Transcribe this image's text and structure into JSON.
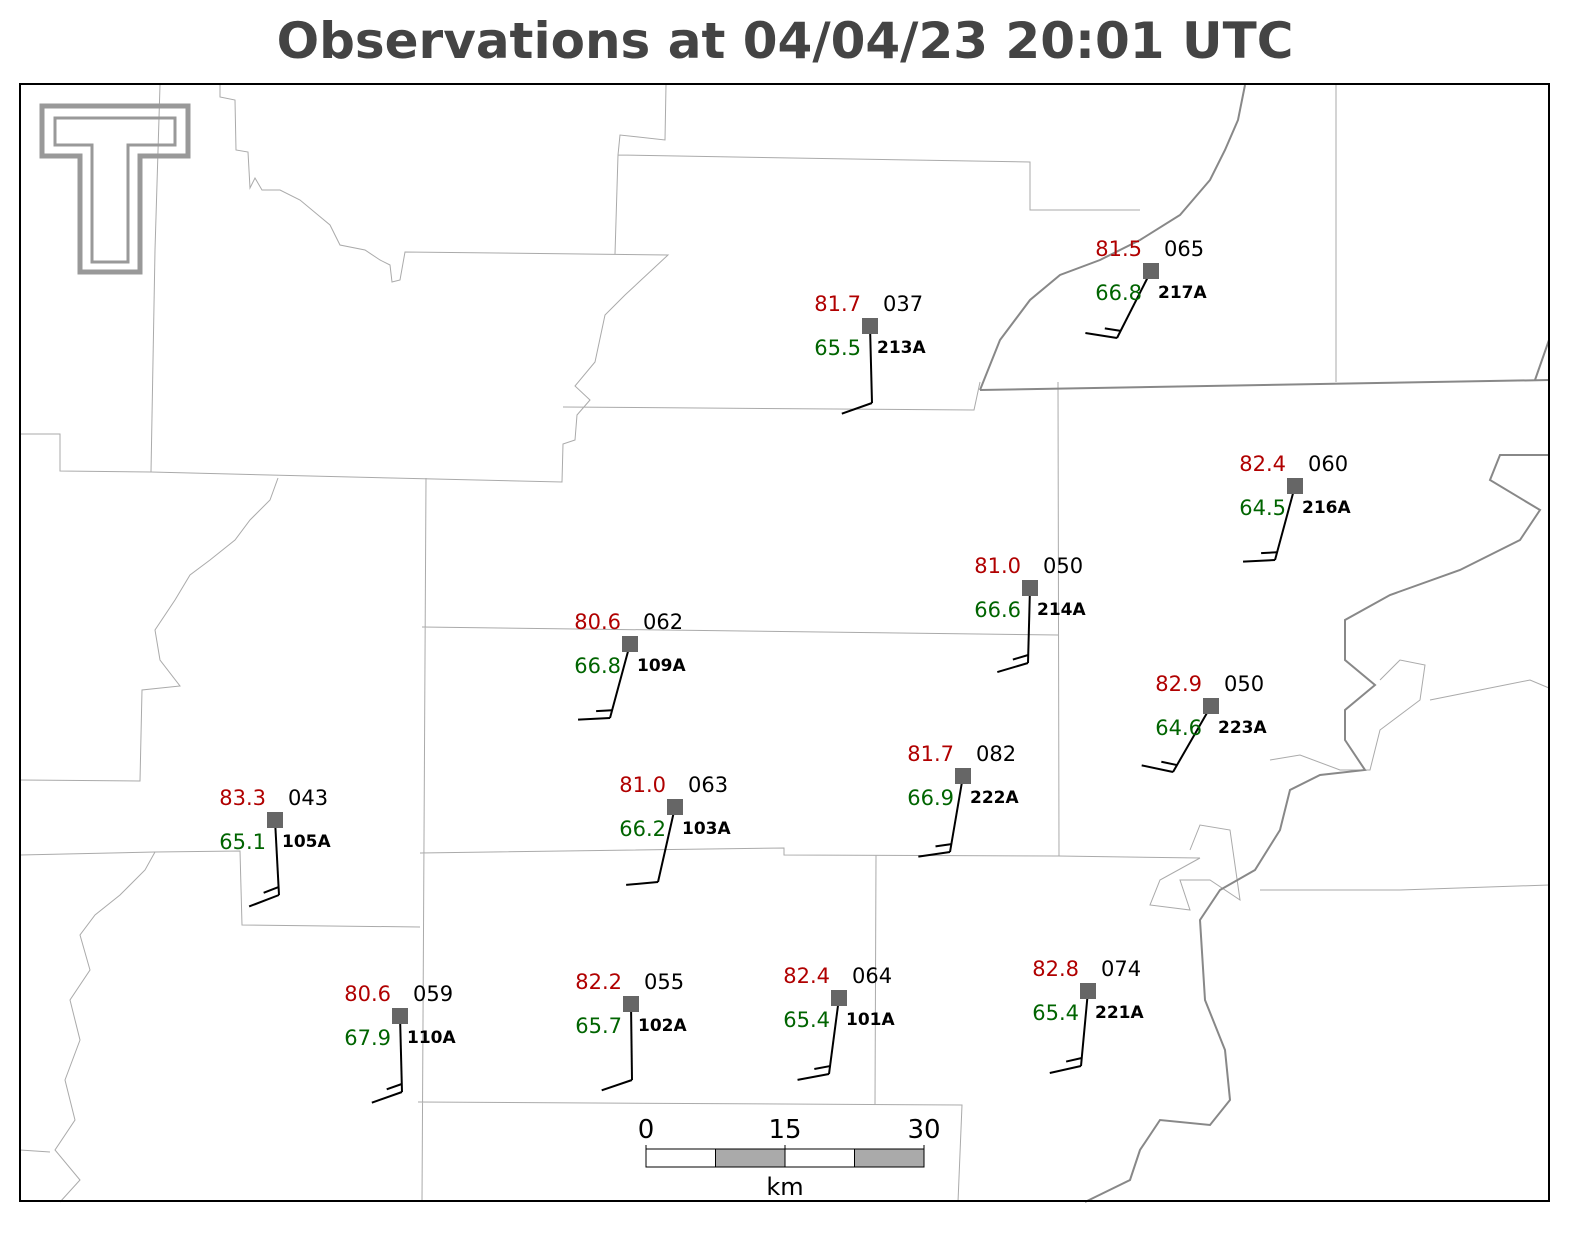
{
  "title": "Observations at 04/04/23 20:01 UTC",
  "stations": [
    {
      "id": "213A",
      "temperature": "81.7",
      "dewpoint": "65.5",
      "pressure": "037"
    },
    {
      "id": "217A",
      "temperature": "81.5",
      "dewpoint": "66.8",
      "pressure": "065"
    },
    {
      "id": "216A",
      "temperature": "82.4",
      "dewpoint": "64.5",
      "pressure": "060"
    },
    {
      "id": "214A",
      "temperature": "81.0",
      "dewpoint": "66.6",
      "pressure": "050"
    },
    {
      "id": "109A",
      "temperature": "80.6",
      "dewpoint": "66.8",
      "pressure": "062"
    },
    {
      "id": "223A",
      "temperature": "82.9",
      "dewpoint": "64.6",
      "pressure": "050"
    },
    {
      "id": "222A",
      "temperature": "81.7",
      "dewpoint": "66.9",
      "pressure": "082"
    },
    {
      "id": "103A",
      "temperature": "81.0",
      "dewpoint": "66.2",
      "pressure": "063"
    },
    {
      "id": "105A",
      "temperature": "83.3",
      "dewpoint": "65.1",
      "pressure": "043"
    },
    {
      "id": "110A",
      "temperature": "80.6",
      "dewpoint": "67.9",
      "pressure": "059"
    },
    {
      "id": "102A",
      "temperature": "82.2",
      "dewpoint": "65.7",
      "pressure": "055"
    },
    {
      "id": "101A",
      "temperature": "82.4",
      "dewpoint": "65.4",
      "pressure": "064"
    },
    {
      "id": "221A",
      "temperature": "82.8",
      "dewpoint": "65.4",
      "pressure": "074"
    }
  ],
  "scale_bar": {
    "ticks": [
      0,
      15,
      30
    ],
    "unit": "km"
  }
}
